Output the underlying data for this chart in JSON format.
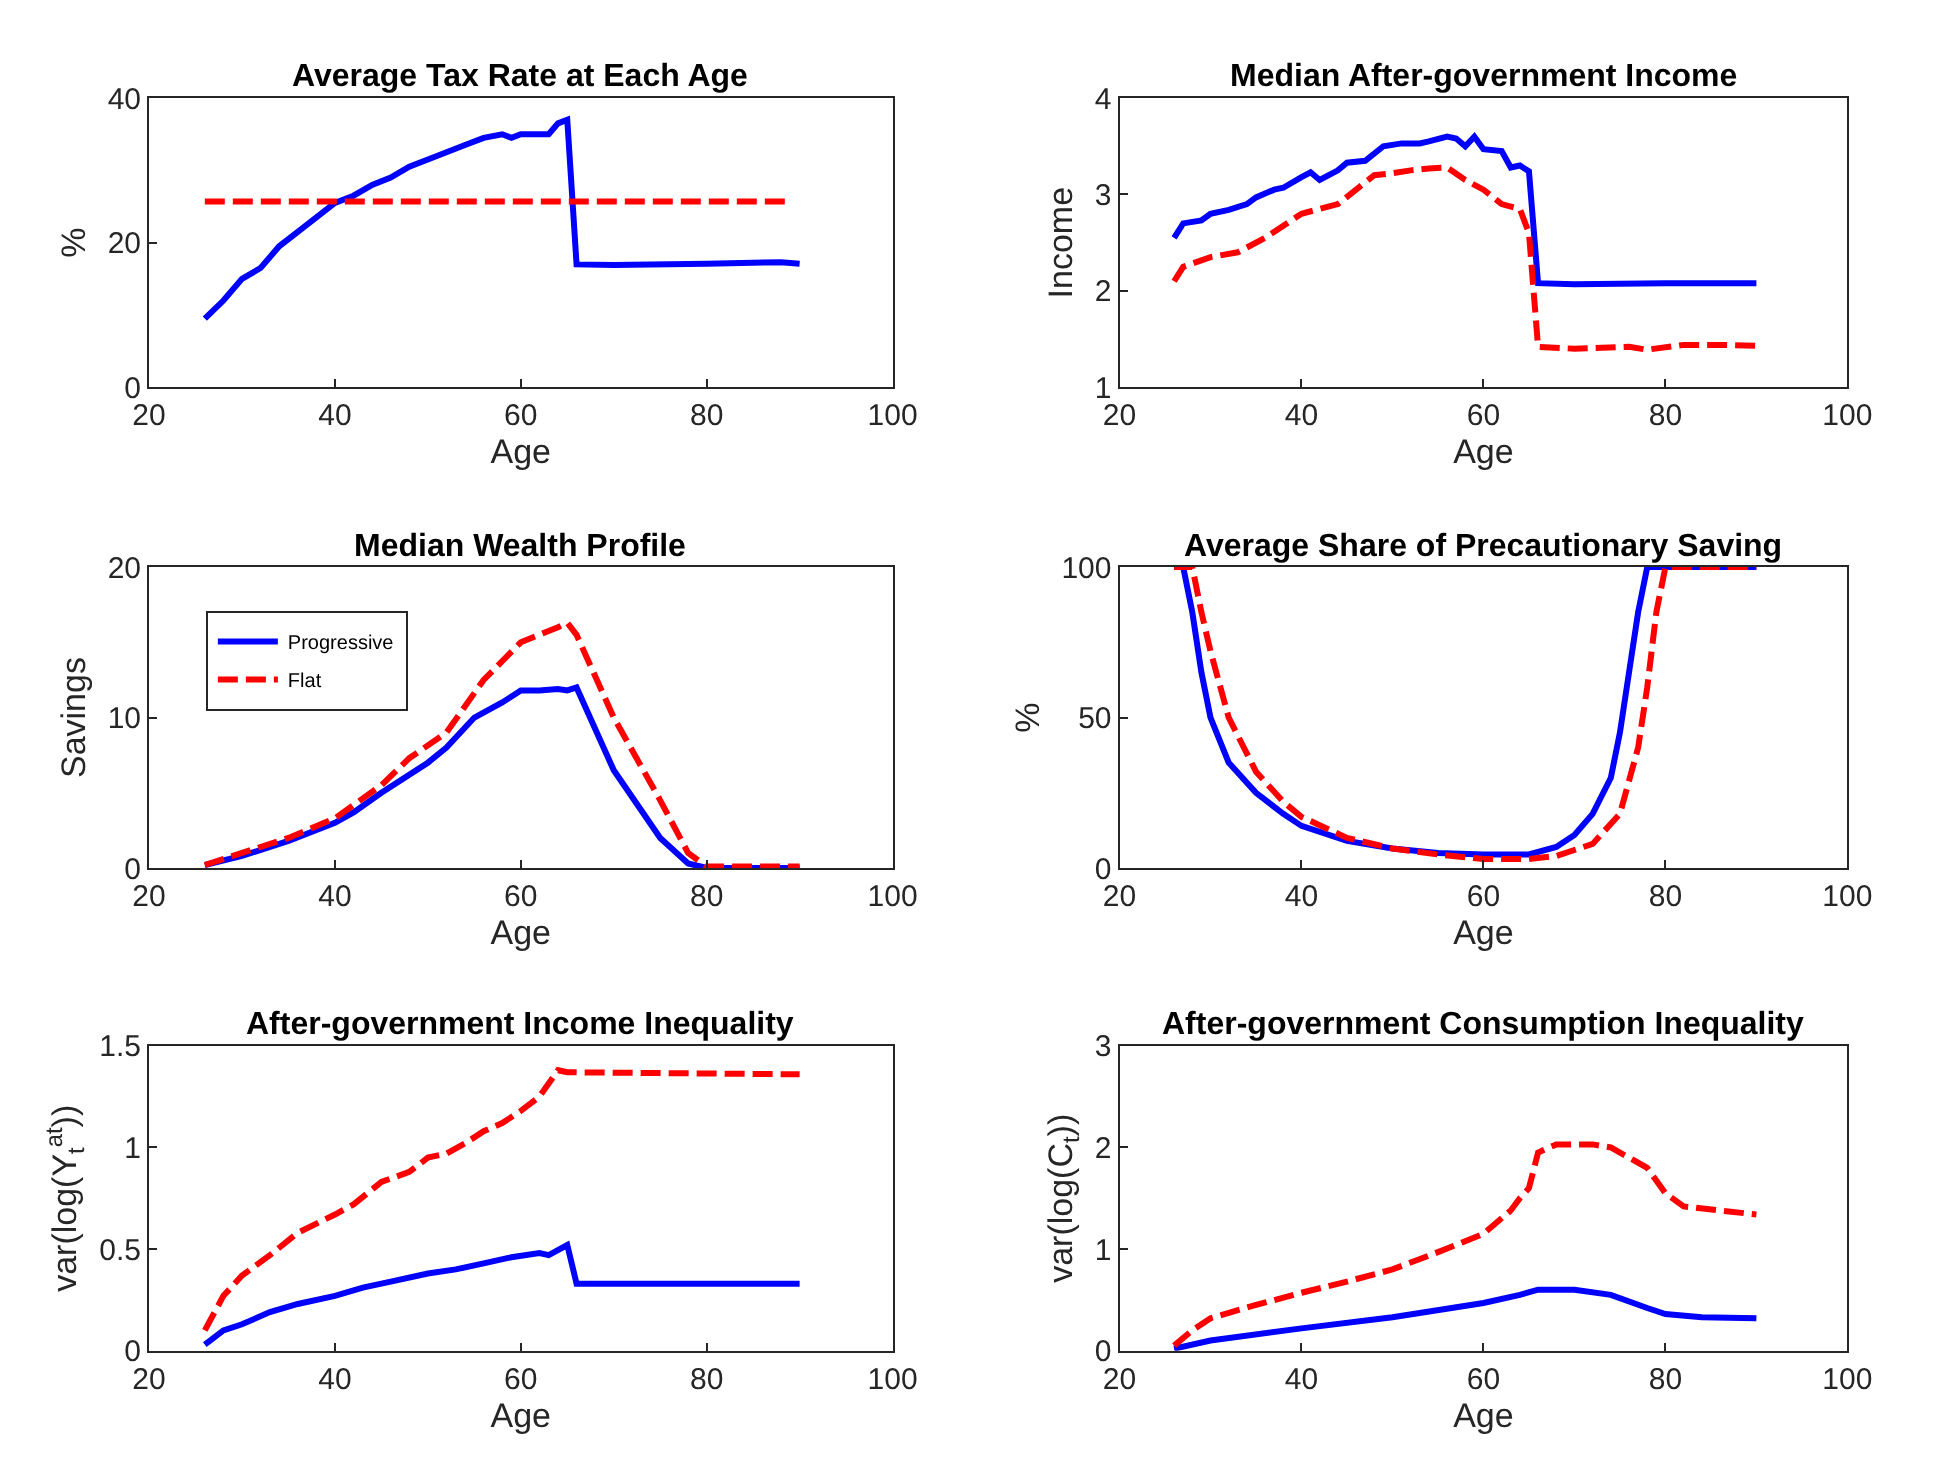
{
  "chart_data": [
    {
      "type": "line",
      "title": "Average Tax Rate at Each Age",
      "xlabel": "Age",
      "ylabel": "%",
      "xlim": [
        20,
        100
      ],
      "xticks": [
        20,
        40,
        60,
        80,
        100
      ],
      "ylim": [
        0,
        40
      ],
      "yticks": [
        0,
        20,
        40
      ],
      "grid": false,
      "legend": false,
      "series": [
        {
          "color": "#0000ff",
          "line_style": "solid",
          "x": [
            26,
            28,
            30,
            32,
            34,
            36,
            38,
            40,
            42,
            44,
            46,
            48,
            50,
            52,
            54,
            56,
            58,
            59,
            60,
            62,
            63,
            64,
            65,
            66,
            70,
            80,
            88,
            90
          ],
          "values": [
            9.5,
            12,
            15,
            16.5,
            19.5,
            21.5,
            23.5,
            25.5,
            26.5,
            28,
            29,
            30.5,
            31.5,
            32.5,
            33.5,
            34.5,
            35,
            34.5,
            35,
            35,
            35,
            36.5,
            37,
            17,
            16.9,
            17.1,
            17.3,
            17.1
          ]
        },
        {
          "color": "#ff0000",
          "line_style": "dashed",
          "x": [
            26,
            89
          ],
          "values": [
            25.7,
            25.7
          ]
        }
      ]
    },
    {
      "type": "line",
      "title": "Median After-government Income",
      "xlabel": "Age",
      "ylabel": "Income",
      "xlim": [
        20,
        100
      ],
      "xticks": [
        20,
        40,
        60,
        80,
        100
      ],
      "ylim": [
        1,
        4
      ],
      "yticks": [
        1,
        2,
        3,
        4
      ],
      "grid": false,
      "legend": false,
      "series": [
        {
          "color": "#0000ff",
          "line_style": "solid",
          "x": [
            26,
            27,
            29,
            30,
            32,
            34,
            35,
            37,
            38,
            40,
            41,
            42,
            44,
            45,
            47,
            49,
            51,
            53,
            54,
            56,
            57,
            58,
            59,
            60,
            62,
            63,
            64,
            65,
            66,
            70,
            80,
            90
          ],
          "values": [
            2.55,
            2.7,
            2.73,
            2.8,
            2.84,
            2.9,
            2.97,
            3.05,
            3.07,
            3.18,
            3.23,
            3.15,
            3.25,
            3.33,
            3.35,
            3.5,
            3.53,
            3.53,
            3.55,
            3.6,
            3.58,
            3.5,
            3.6,
            3.47,
            3.45,
            3.28,
            3.3,
            3.24,
            2.08,
            2.07,
            2.08,
            2.08
          ]
        },
        {
          "color": "#ff0000",
          "line_style": "dashed",
          "x": [
            26,
            27,
            30,
            33,
            36,
            40,
            42,
            44,
            46,
            48,
            50,
            52,
            54,
            56,
            58,
            60,
            62,
            64,
            65,
            66,
            70,
            76,
            78,
            82,
            86,
            90
          ],
          "values": [
            2.1,
            2.25,
            2.35,
            2.4,
            2.55,
            2.8,
            2.85,
            2.9,
            3.05,
            3.2,
            3.22,
            3.25,
            3.27,
            3.28,
            3.15,
            3.05,
            2.9,
            2.85,
            2.6,
            1.42,
            1.4,
            1.42,
            1.39,
            1.44,
            1.44,
            1.43
          ]
        }
      ]
    },
    {
      "type": "line",
      "title": "Median Wealth Profile",
      "xlabel": "Age",
      "ylabel": "Savings",
      "xlim": [
        20,
        100
      ],
      "xticks": [
        20,
        40,
        60,
        80,
        100
      ],
      "ylim": [
        0,
        20
      ],
      "yticks": [
        0,
        10,
        20
      ],
      "grid": false,
      "legend": "top left",
      "series": [
        {
          "name": "Progressive",
          "color": "#0000ff",
          "line_style": "solid",
          "x": [
            26,
            30,
            35,
            40,
            42,
            45,
            50,
            52,
            55,
            58,
            60,
            62,
            64,
            65,
            66,
            70,
            75,
            78,
            80,
            90
          ],
          "values": [
            0.2,
            0.8,
            1.8,
            3,
            3.7,
            5,
            7,
            8,
            10,
            11,
            11.8,
            11.8,
            11.9,
            11.8,
            12,
            6.5,
            2,
            0.3,
            0,
            0
          ]
        },
        {
          "name": "Flat",
          "color": "#ff0000",
          "line_style": "dashed",
          "x": [
            26,
            30,
            35,
            40,
            45,
            48,
            52,
            56,
            60,
            64,
            65,
            66,
            70,
            75,
            78,
            80,
            90
          ],
          "values": [
            0.2,
            1,
            2,
            3.3,
            5.5,
            7.3,
            9,
            12.5,
            15,
            16,
            16.3,
            15.5,
            10,
            4.5,
            1,
            0.1,
            0.1
          ]
        }
      ]
    },
    {
      "type": "line",
      "title": "Average Share of Precautionary Saving",
      "xlabel": "Age",
      "ylabel": "%",
      "xlim": [
        20,
        100
      ],
      "xticks": [
        20,
        40,
        60,
        80,
        100
      ],
      "ylim": [
        0,
        100
      ],
      "yticks": [
        0,
        50,
        100
      ],
      "grid": false,
      "legend": false,
      "series": [
        {
          "color": "#0000ff",
          "line_style": "solid",
          "x": [
            26,
            27,
            28,
            29,
            30,
            32,
            35,
            38,
            40,
            45,
            50,
            55,
            60,
            65,
            68,
            70,
            72,
            74,
            75,
            76,
            77,
            78,
            90
          ],
          "values": [
            100,
            100,
            85,
            65,
            50,
            35,
            25,
            18,
            14,
            9,
            6.5,
            5,
            4.5,
            4.5,
            7,
            11,
            18,
            30,
            45,
            65,
            85,
            100,
            100
          ]
        },
        {
          "color": "#ff0000",
          "line_style": "dashed",
          "x": [
            26,
            28,
            29,
            30,
            32,
            35,
            38,
            40,
            45,
            50,
            55,
            60,
            65,
            68,
            72,
            75,
            77,
            78,
            79,
            80,
            90
          ],
          "values": [
            100,
            100,
            85,
            72,
            50,
            32,
            22,
            17,
            10,
            6.5,
            4.5,
            3,
            3,
            4,
            8,
            18,
            40,
            60,
            85,
            100,
            100
          ]
        }
      ]
    },
    {
      "type": "line",
      "title": "After-government Income Inequality",
      "xlabel": "Age",
      "ylabel": "var(log(Y$_{t}$$^{at}$))",
      "xlim": [
        20,
        100
      ],
      "xticks": [
        20,
        40,
        60,
        80,
        100
      ],
      "ylim": [
        0,
        1.5
      ],
      "yticks": [
        0,
        0.5,
        1,
        1.5
      ],
      "grid": false,
      "legend": false,
      "series": [
        {
          "color": "#0000ff",
          "line_style": "solid",
          "x": [
            26,
            28,
            30,
            33,
            36,
            40,
            43,
            46,
            50,
            53,
            56,
            59,
            62,
            63,
            65,
            66,
            90
          ],
          "values": [
            0.03,
            0.1,
            0.13,
            0.19,
            0.23,
            0.27,
            0.31,
            0.34,
            0.38,
            0.4,
            0.43,
            0.46,
            0.48,
            0.47,
            0.52,
            0.33,
            0.33
          ]
        },
        {
          "color": "#ff0000",
          "line_style": "dashed",
          "x": [
            26,
            28,
            30,
            33,
            36,
            40,
            42,
            45,
            48,
            50,
            52,
            54,
            56,
            58,
            60,
            62,
            64,
            65,
            90
          ],
          "values": [
            0.1,
            0.27,
            0.37,
            0.47,
            0.58,
            0.67,
            0.72,
            0.83,
            0.88,
            0.95,
            0.97,
            1.02,
            1.08,
            1.12,
            1.18,
            1.25,
            1.38,
            1.37,
            1.36
          ]
        }
      ]
    },
    {
      "type": "line",
      "title": "After-government Consumption Inequality",
      "xlabel": "Age",
      "ylabel": "var(log(C$_{t}$))",
      "xlim": [
        20,
        100
      ],
      "xticks": [
        20,
        40,
        60,
        80,
        100
      ],
      "ylim": [
        0,
        3
      ],
      "yticks": [
        0,
        1,
        2,
        3
      ],
      "grid": false,
      "legend": false,
      "series": [
        {
          "color": "#0000ff",
          "line_style": "solid",
          "x": [
            26,
            30,
            40,
            50,
            60,
            64,
            66,
            70,
            74,
            78,
            80,
            84,
            90
          ],
          "values": [
            0.02,
            0.1,
            0.22,
            0.33,
            0.47,
            0.55,
            0.6,
            0.6,
            0.55,
            0.42,
            0.36,
            0.33,
            0.32
          ]
        },
        {
          "color": "#ff0000",
          "line_style": "dashed",
          "x": [
            26,
            28,
            30,
            35,
            40,
            45,
            50,
            55,
            60,
            63,
            64,
            65,
            66,
            68,
            72,
            74,
            78,
            80,
            82,
            86,
            90
          ],
          "values": [
            0.05,
            0.2,
            0.32,
            0.45,
            0.57,
            0.68,
            0.8,
            0.97,
            1.15,
            1.38,
            1.5,
            1.6,
            1.95,
            2.03,
            2.03,
            2.0,
            1.8,
            1.55,
            1.42,
            1.38,
            1.34
          ]
        }
      ]
    }
  ]
}
